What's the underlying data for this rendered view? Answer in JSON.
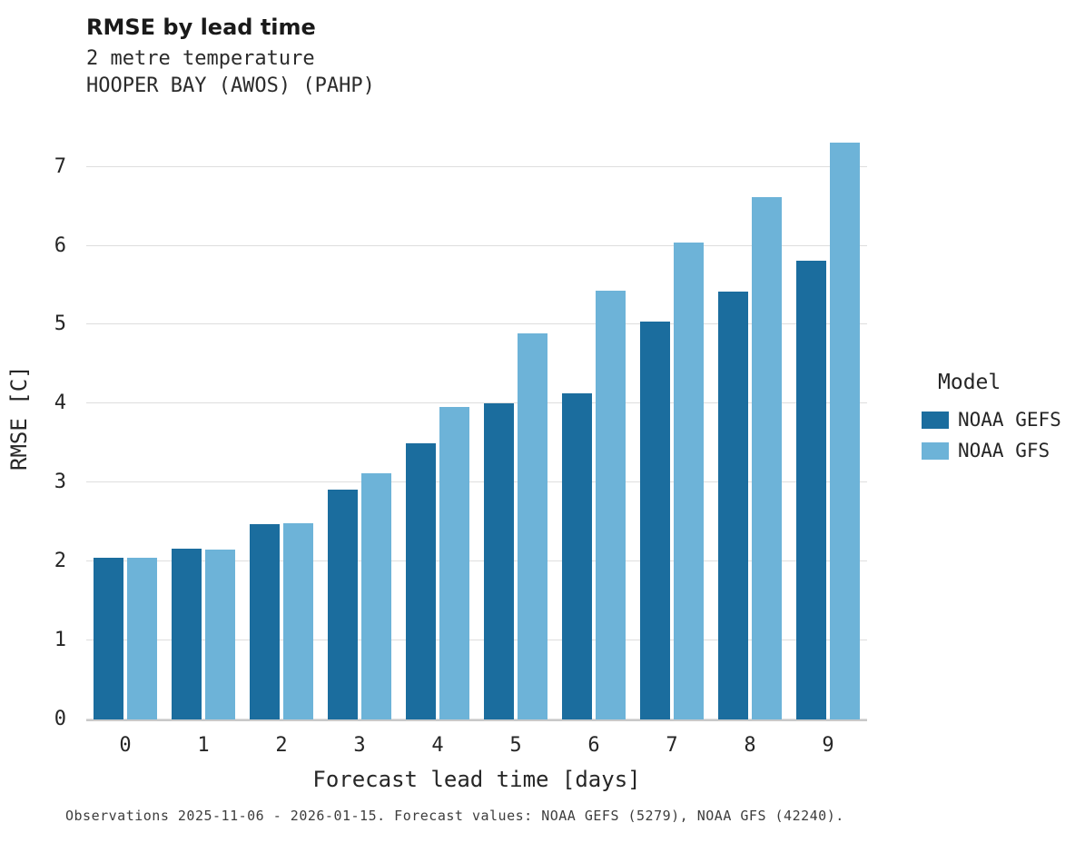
{
  "header": {
    "title": "RMSE by lead time",
    "subtitle1": "2 metre temperature",
    "subtitle2": "HOOPER BAY (AWOS) (PAHP)"
  },
  "caption": "Observations 2025-11-06 - 2026-01-15. Forecast values: NOAA GEFS (5279), NOAA GFS (42240).",
  "legend": {
    "title": "Model",
    "entries": [
      {
        "label": "NOAA GEFS",
        "color": "#1b6d9e"
      },
      {
        "label": "NOAA GFS",
        "color": "#6db3d8"
      }
    ]
  },
  "colors": {
    "gefs": "#1b6d9e",
    "gfs": "#6db3d8",
    "gridline": "#dedede",
    "axis": "#c9c9c9"
  },
  "chart_data": {
    "type": "bar",
    "title": "RMSE by lead time",
    "subtitle": "2 metre temperature — HOOPER BAY (AWOS) (PAHP)",
    "categories": [
      "0",
      "1",
      "2",
      "3",
      "4",
      "5",
      "6",
      "7",
      "8",
      "9"
    ],
    "series": [
      {
        "name": "NOAA GEFS",
        "color": "#1b6d9e",
        "values": [
          2.05,
          2.16,
          2.47,
          2.91,
          3.5,
          4.0,
          4.13,
          5.04,
          5.42,
          5.81
        ]
      },
      {
        "name": "NOAA GFS",
        "color": "#6db3d8",
        "values": [
          2.05,
          2.15,
          2.49,
          3.12,
          3.96,
          4.89,
          5.43,
          6.04,
          6.62,
          7.31
        ]
      }
    ],
    "xlabel": "Forecast lead time [days]",
    "ylabel": "RMSE [C]",
    "ylim": [
      0,
      7.64
    ],
    "yticks": [
      0,
      1,
      2,
      3,
      4,
      5,
      6,
      7
    ],
    "grid": true,
    "legend_position": "right"
  }
}
